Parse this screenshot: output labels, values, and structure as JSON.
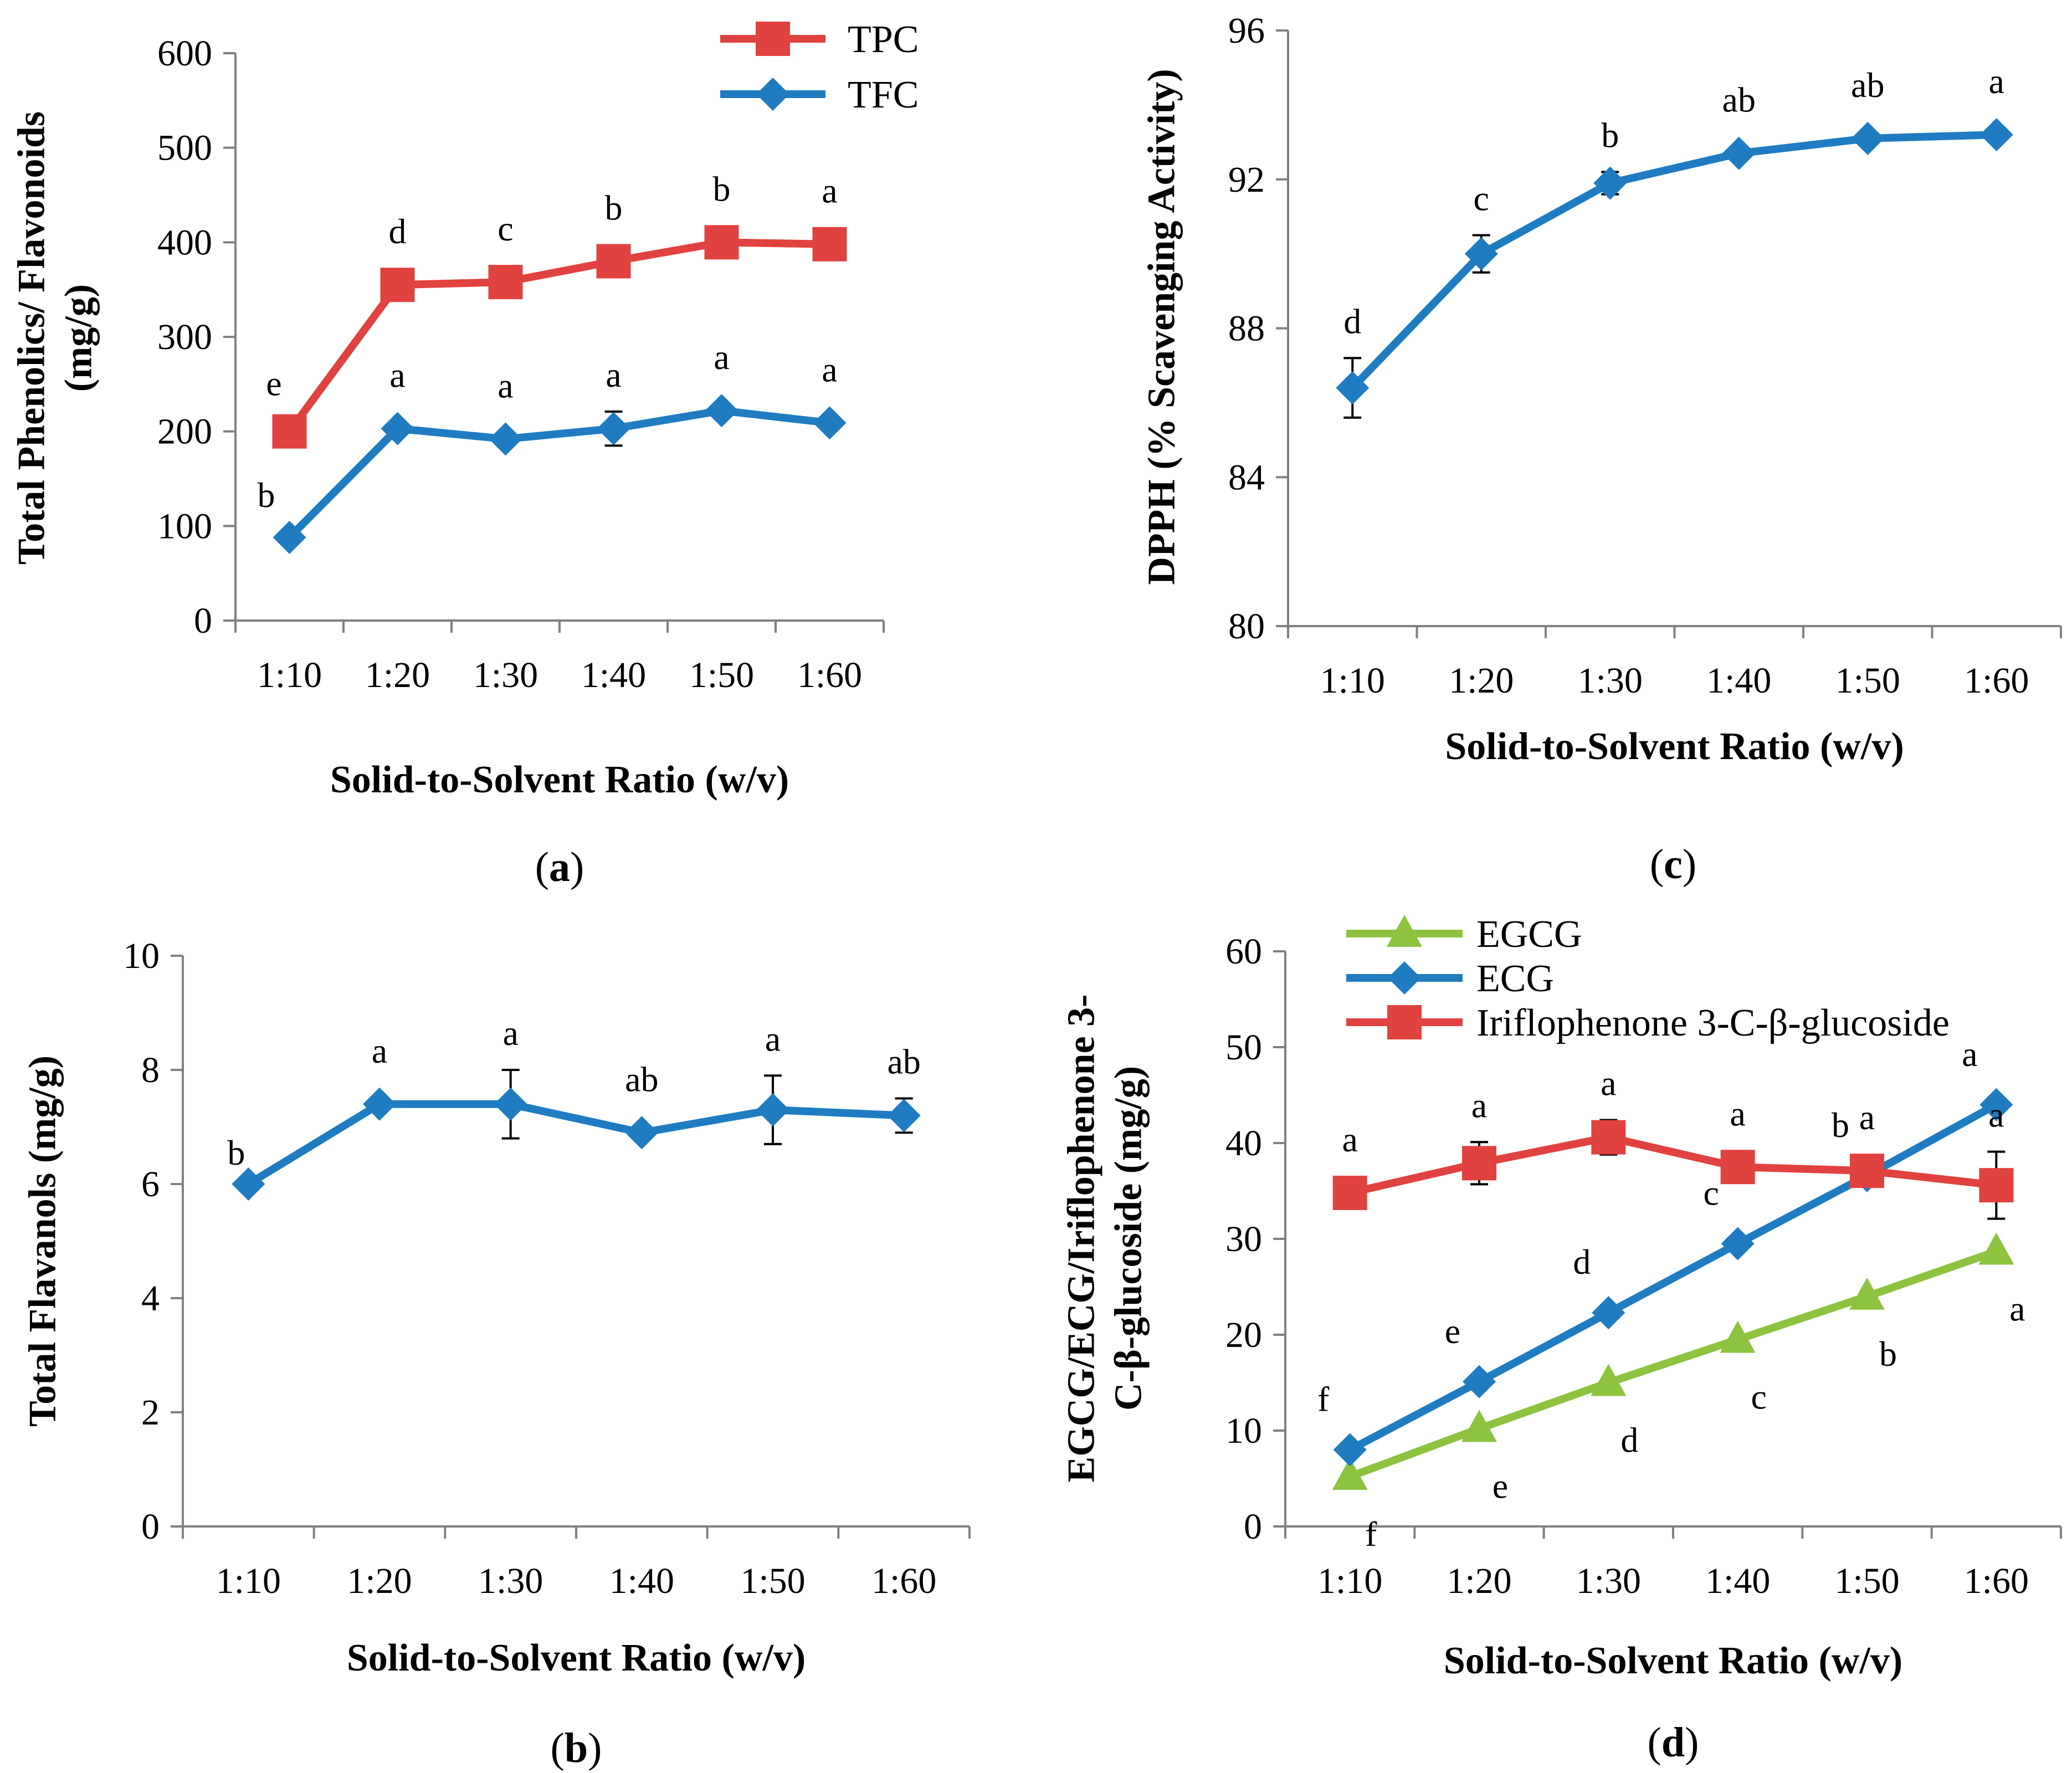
{
  "chart_data": [
    {
      "panel": "a",
      "panel_label": {
        "open": "(",
        "letter": "a",
        "close": ")"
      },
      "type": "line",
      "xlabel": "Solid-to-Solvent Ratio (w/v)",
      "ylabel": [
        "Total Phenolics/ Flavonoids",
        "(mg/g)"
      ],
      "categories": [
        "1:10",
        "1:20",
        "1:30",
        "1:40",
        "1:50",
        "1:60"
      ],
      "ylim": [
        0,
        600
      ],
      "yticks": [
        0,
        100,
        200,
        300,
        400,
        500,
        600
      ],
      "legend": {
        "position": "top-right"
      },
      "series": [
        {
          "name": "TPC",
          "color": "#e0423f",
          "marker": "square",
          "values": [
            200,
            355,
            358,
            380,
            400,
            398
          ],
          "errors": [
            0,
            0,
            0,
            0,
            0,
            0
          ],
          "letters": [
            "e",
            "d",
            "c",
            "b",
            "b",
            "a"
          ],
          "letter_pos": "above"
        },
        {
          "name": "TFC",
          "color": "#1f7cc1",
          "marker": "diamond",
          "values": [
            88,
            203,
            192,
            203,
            222,
            209
          ],
          "errors": [
            0,
            0,
            0,
            18,
            0,
            0
          ],
          "letters": [
            "b",
            "a",
            "a",
            "a",
            "a",
            "a"
          ],
          "letter_pos": "above"
        }
      ]
    },
    {
      "panel": "b",
      "panel_label": {
        "open": "(",
        "letter": "b",
        "close": ")"
      },
      "type": "line",
      "xlabel": "Solid-to-Solvent Ratio (w/v)",
      "ylabel": [
        "Total Flavanols (mg/g)"
      ],
      "categories": [
        "1:10",
        "1:20",
        "1:30",
        "1:40",
        "1:50",
        "1:60"
      ],
      "ylim": [
        0,
        10
      ],
      "yticks": [
        0,
        2,
        4,
        6,
        8,
        10
      ],
      "series": [
        {
          "name": "Total Flavanols",
          "color": "#1f7cc1",
          "marker": "diamond",
          "values": [
            6.0,
            7.4,
            7.4,
            6.9,
            7.3,
            7.2
          ],
          "errors": [
            0,
            0,
            0.6,
            0,
            0.6,
            0.3
          ],
          "letters": [
            "b",
            "a",
            "a",
            "ab",
            "a",
            "ab"
          ],
          "letter_pos": "above"
        }
      ]
    },
    {
      "panel": "c",
      "panel_label": {
        "open": "(",
        "letter": "c",
        "close": ")"
      },
      "type": "line",
      "xlabel": "Solid-to-Solvent Ratio (w/v)",
      "ylabel": [
        "DPPH (% Scavenging Activity)"
      ],
      "categories": [
        "1:10",
        "1:20",
        "1:30",
        "1:40",
        "1:50",
        "1:60"
      ],
      "ylim": [
        80,
        96
      ],
      "yticks": [
        80,
        84,
        88,
        92,
        96
      ],
      "series": [
        {
          "name": "DPPH",
          "color": "#1f7cc1",
          "marker": "diamond",
          "values": [
            86.4,
            90.0,
            91.9,
            92.7,
            93.1,
            93.2
          ],
          "errors": [
            0.8,
            0.5,
            0.3,
            0,
            0,
            0
          ],
          "letters": [
            "d",
            "c",
            "b",
            "ab",
            "ab",
            "a"
          ],
          "letter_pos": "above"
        }
      ]
    },
    {
      "panel": "d",
      "panel_label": {
        "open": "(",
        "letter": "d",
        "close": ")"
      },
      "type": "line",
      "xlabel": "Solid-to-Solvent Ratio (w/v)",
      "ylabel": [
        "EGCG/ECG/Iriflophenone 3-",
        "C-β-glucoside (mg/g)"
      ],
      "categories": [
        "1:10",
        "1:20",
        "1:30",
        "1:40",
        "1:50",
        "1:60"
      ],
      "ylim": [
        0,
        60
      ],
      "yticks": [
        0,
        10,
        20,
        30,
        40,
        50,
        60
      ],
      "legend": {
        "position": "top-left"
      },
      "series": [
        {
          "name": "EGCG",
          "color": "#8dc33f",
          "marker": "triangle",
          "values": [
            5.2,
            10.2,
            15.0,
            19.5,
            24.0,
            28.7
          ],
          "errors": [
            0,
            0,
            0,
            0,
            0,
            0
          ],
          "letters": [
            "f",
            "e",
            "d",
            "c",
            "b",
            "a"
          ],
          "letter_pos": "below"
        },
        {
          "name": "ECG",
          "color": "#1f7cc1",
          "marker": "diamond",
          "values": [
            8.0,
            15.1,
            22.3,
            29.5,
            36.6,
            44.0
          ],
          "errors": [
            0,
            0,
            0,
            0,
            0,
            0
          ],
          "letters": [
            "f",
            "e",
            "d",
            "c",
            "b",
            "a"
          ],
          "letter_pos": "above-left"
        },
        {
          "name": "Iriflophenone 3-C-β-glucoside",
          "color": "#e0423f",
          "marker": "square",
          "values": [
            34.8,
            37.9,
            40.6,
            37.5,
            37.1,
            35.6
          ],
          "errors": [
            0,
            2.2,
            1.8,
            0,
            0,
            3.5
          ],
          "letters": [
            "a",
            "a",
            "a",
            "a",
            "a",
            "a"
          ],
          "letter_pos": "above"
        }
      ]
    }
  ]
}
